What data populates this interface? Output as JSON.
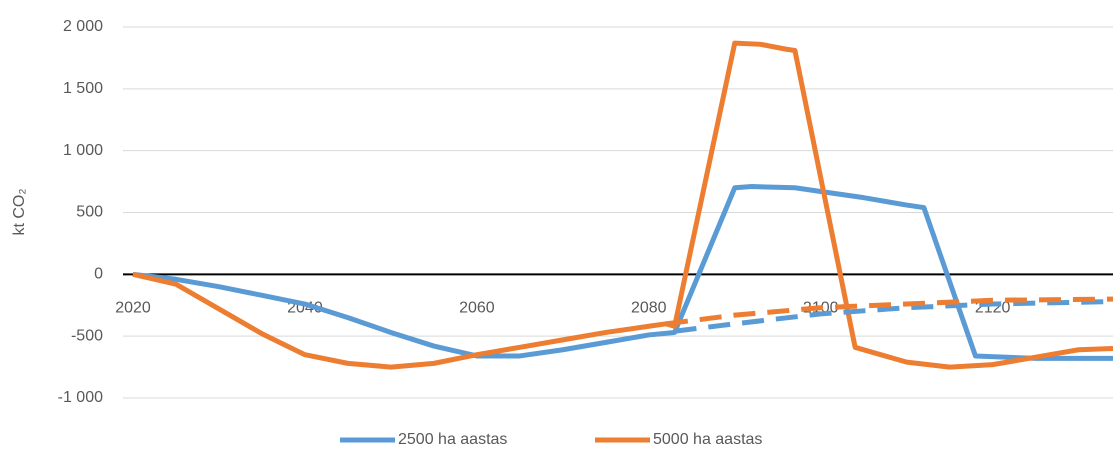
{
  "chart_data": {
    "type": "line",
    "y_label": "kt CO₂",
    "xlim": [
      2020,
      2134
    ],
    "xticks": [
      2020,
      2040,
      2060,
      2080,
      2100,
      2120
    ],
    "ylim": [
      -1000,
      2000
    ],
    "yticks": [
      {
        "value": -1000,
        "label": "-1 000"
      },
      -500,
      0,
      500,
      {
        "value": 1000,
        "label": "1 000"
      },
      {
        "value": 1500,
        "label": "1 500"
      },
      {
        "value": 2000,
        "label": "2 000"
      }
    ],
    "grid": true,
    "legend": "bottom",
    "series": [
      {
        "name": "2500 ha aastas",
        "color": "#5b9bd5",
        "x": [
          2020,
          2025,
          2030,
          2035,
          2040,
          2045,
          2050,
          2055,
          2060,
          2065,
          2070,
          2075,
          2080,
          2083,
          2090,
          2092,
          2097,
          2100,
          2105,
          2110,
          2112,
          2118,
          2125,
          2134
        ],
        "values": [
          0,
          -40,
          -100,
          -170,
          -240,
          -350,
          -470,
          -580,
          -660,
          -660,
          -610,
          -550,
          -490,
          -470,
          700,
          710,
          700,
          670,
          620,
          560,
          540,
          -660,
          -680,
          -680
        ]
      },
      {
        "name": "5000 ha aastas",
        "color": "#ed7d31",
        "x": [
          2020,
          2025,
          2030,
          2035,
          2040,
          2045,
          2050,
          2055,
          2060,
          2065,
          2070,
          2075,
          2080,
          2082,
          2083,
          2090,
          2093,
          2096,
          2097,
          2104,
          2110,
          2115,
          2120,
          2125,
          2130,
          2134
        ],
        "values": [
          0,
          -80,
          -280,
          -480,
          -650,
          -720,
          -750,
          -720,
          -650,
          -590,
          -530,
          -470,
          -420,
          -400,
          -420,
          1870,
          1860,
          1820,
          1810,
          -590,
          -710,
          -750,
          -730,
          -670,
          -610,
          -600
        ]
      },
      {
        "color": "#5b9bd5",
        "dashed": true,
        "x": [
          2083,
          2090,
          2100,
          2110,
          2120,
          2134
        ],
        "values": [
          -460,
          -400,
          -320,
          -270,
          -240,
          -220
        ]
      },
      {
        "color": "#ed7d31",
        "dashed": true,
        "x": [
          2082,
          2090,
          2100,
          2110,
          2120,
          2134
        ],
        "values": [
          -400,
          -330,
          -270,
          -240,
          -210,
          -200
        ]
      }
    ]
  }
}
